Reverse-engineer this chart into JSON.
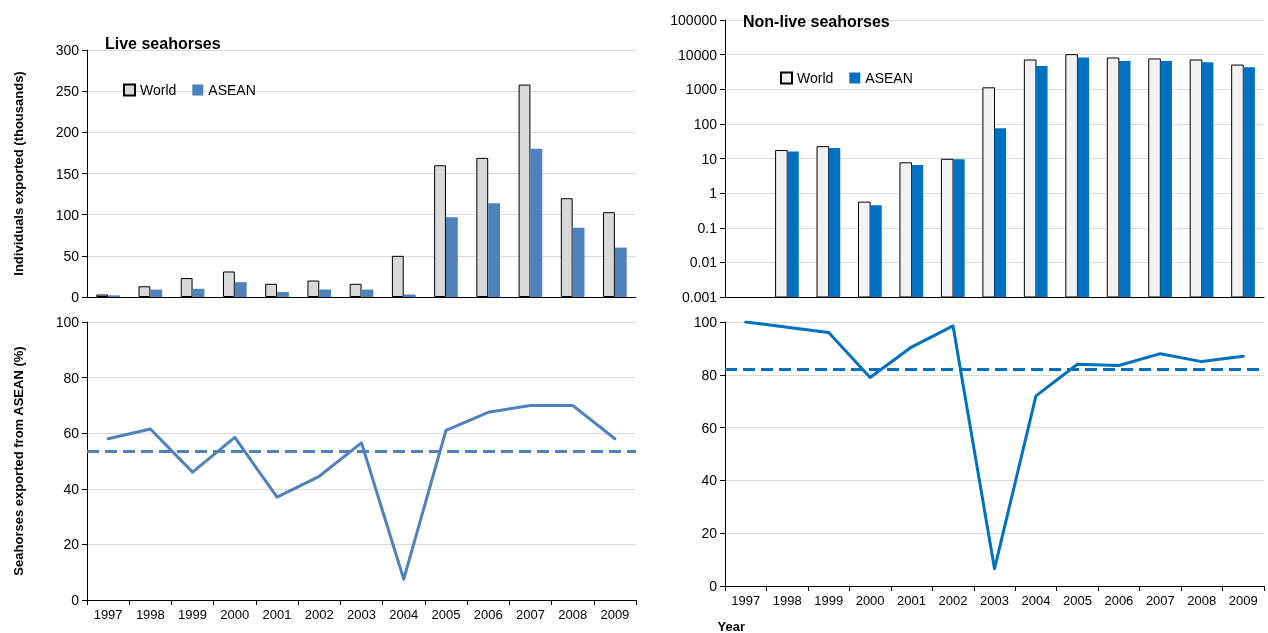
{
  "chart_data": [
    {
      "type": "bar",
      "title": "Live seahorses",
      "ylabel": "Individuals exported (thousands)",
      "categories": [
        "1997",
        "1998",
        "1999",
        "2000",
        "2001",
        "2002",
        "2003",
        "2004",
        "2005",
        "2006",
        "2007",
        "2008",
        "2009"
      ],
      "series": [
        {
          "name": "World",
          "color": "#d9d9d9",
          "values": [
            3,
            13,
            23,
            31,
            16,
            20,
            16,
            50,
            160,
            169,
            258,
            120,
            103
          ]
        },
        {
          "name": "ASEAN",
          "color": "#4f81bd",
          "values": [
            2,
            9,
            10,
            18,
            6,
            9,
            9,
            3,
            97,
            114,
            180,
            84,
            60
          ]
        }
      ],
      "ylim": [
        0,
        300
      ],
      "yticks": [
        0,
        50,
        100,
        150,
        200,
        250,
        300
      ],
      "grid": "y",
      "legend": "top left",
      "tick_labels": "y"
    },
    {
      "type": "bar",
      "title": "Non-live seahorses",
      "categories": [
        "1997",
        "1998",
        "1999",
        "2000",
        "2001",
        "2002",
        "2003",
        "2004",
        "2005",
        "2006",
        "2007",
        "2008",
        "2009"
      ],
      "series": [
        {
          "name": "World",
          "color": "#f2f2f2",
          "values": [
            null,
            17,
            22,
            0.55,
            7.5,
            9.5,
            1100,
            7000,
            10000,
            8000,
            7500,
            7000,
            5000
          ]
        },
        {
          "name": "ASEAN",
          "color": "#0070c0",
          "values": [
            null,
            16,
            20,
            0.45,
            6.5,
            9.5,
            75,
            4700,
            8200,
            6500,
            6500,
            6000,
            4300
          ]
        }
      ],
      "log": "y",
      "ylim": [
        0.001,
        100000
      ],
      "yticks": [
        0.001,
        0.01,
        0.1,
        1,
        10,
        100,
        1000,
        10000,
        100000
      ],
      "grid": "y",
      "legend": "top left",
      "tick_labels": "y"
    },
    {
      "type": "line",
      "ylabel": "Seahorses exported from ASEAN (%)",
      "categories": [
        "1997",
        "1998",
        "1999",
        "2000",
        "2001",
        "2002",
        "2003",
        "2004",
        "2005",
        "2006",
        "2007",
        "2008",
        "2009"
      ],
      "series": [
        {
          "color": "#4f81bd",
          "values": [
            58,
            61.5,
            46,
            58.5,
            37,
            44.5,
            56.5,
            7.5,
            61,
            67.5,
            70,
            70,
            58
          ]
        }
      ],
      "ylim": [
        0,
        100
      ],
      "yticks": [
        0,
        20,
        40,
        60,
        80,
        100
      ],
      "grid": "y",
      "legend": false,
      "marker": "none",
      "line_style": "solid",
      "ref_lines": [
        {
          "axis": "y",
          "value": 53.5,
          "color": "#4f81bd",
          "line_style": "dashed"
        }
      ]
    },
    {
      "type": "line",
      "xlabel": "Year",
      "categories": [
        "1997",
        "1998",
        "1999",
        "2000",
        "2001",
        "2002",
        "2003",
        "2004",
        "2005",
        "2006",
        "2007",
        "2008",
        "2009"
      ],
      "series": [
        {
          "color": "#0070c0",
          "values": [
            100,
            98,
            96,
            79,
            90.5,
            98.5,
            6.5,
            72,
            84,
            83.5,
            88,
            85,
            87
          ]
        }
      ],
      "ylim": [
        0,
        100
      ],
      "yticks": [
        0,
        20,
        40,
        60,
        80,
        100
      ],
      "grid": "y",
      "legend": false,
      "marker": "none",
      "line_style": "solid",
      "ref_lines": [
        {
          "axis": "y",
          "value": 82,
          "color": "#0070c0",
          "line_style": "dashed"
        }
      ]
    }
  ]
}
